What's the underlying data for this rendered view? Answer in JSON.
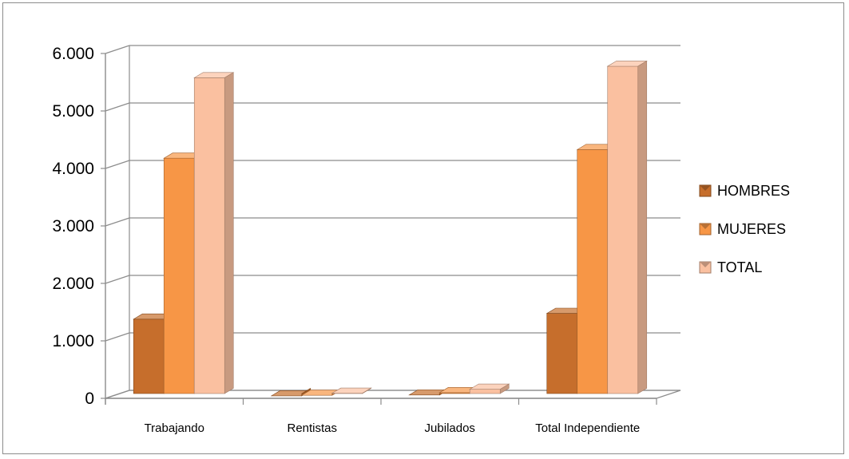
{
  "chart_data": {
    "type": "bar",
    "style": "3d-clustered-column",
    "categories": [
      "Trabajando",
      "Rentistas",
      "Jubilados",
      "Total Independiente"
    ],
    "series": [
      {
        "name": "HOMBRES",
        "values": [
          1350,
          15,
          30,
          1450
        ],
        "color": "#C66E2C"
      },
      {
        "name": "MUJERES",
        "values": [
          4150,
          25,
          70,
          4300
        ],
        "color": "#F79646"
      },
      {
        "name": "TOTAL",
        "values": [
          5550,
          60,
          130,
          5750
        ],
        "color": "#FAC0A0"
      }
    ],
    "ylim": [
      0,
      6000
    ],
    "yticks": [
      0,
      1000,
      2000,
      3000,
      4000,
      5000,
      6000
    ],
    "ytick_labels": [
      "0",
      "1.000",
      "2.000",
      "3.000",
      "4.000",
      "5.000",
      "6.000"
    ],
    "grid": true,
    "legend_position": "right"
  }
}
